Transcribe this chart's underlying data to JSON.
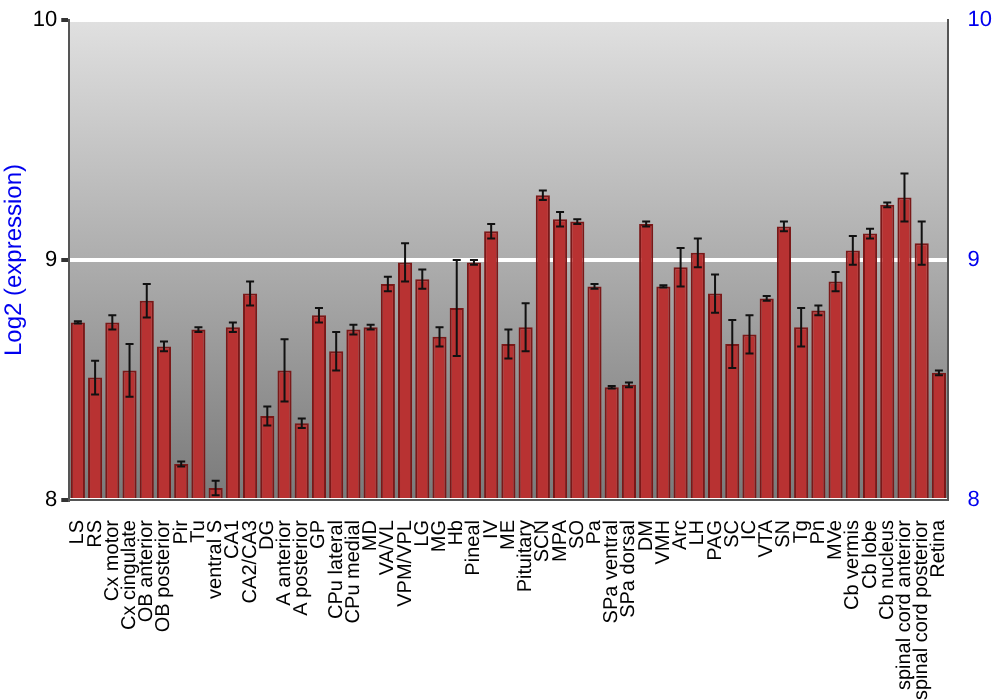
{
  "chart_data": {
    "type": "bar",
    "ylabel": "Log2 (expression)",
    "categories": [
      "LS",
      "RS",
      "Cx motor",
      "Cx cingulate",
      "OB anterior",
      "OB posterior",
      "Pir",
      "Tu",
      "ventral S",
      "CA1",
      "CA2/CA3",
      "DG",
      "A anterior",
      "A posterior",
      "GP",
      "CPu lateral",
      "CPu medial",
      "MD",
      "VA/VL",
      "VPM/VPL",
      "LG",
      "MG",
      "Hb",
      "Pineal",
      "IV",
      "ME",
      "Pituitary",
      "SCN",
      "MPA",
      "SO",
      "Pa",
      "SPa ventral",
      "SPa dorsal",
      "DM",
      "VMH",
      "Arc",
      "LH",
      "PAG",
      "SC",
      "IC",
      "VTA",
      "SN",
      "Tg",
      "Pn",
      "MVe",
      "Cb vermis",
      "Cb lobe",
      "Cb nucleus",
      "spinal cord anterior",
      "spinal cord posterior",
      "Retina"
    ],
    "values": [
      8.74,
      8.51,
      8.74,
      8.54,
      8.83,
      8.64,
      8.15,
      8.71,
      8.05,
      8.72,
      8.86,
      8.35,
      8.54,
      8.32,
      8.77,
      8.62,
      8.71,
      8.72,
      8.9,
      8.99,
      8.92,
      8.68,
      8.8,
      8.99,
      9.12,
      8.65,
      8.72,
      9.27,
      9.17,
      9.16,
      8.89,
      8.47,
      8.48,
      9.15,
      8.89,
      8.97,
      9.03,
      8.86,
      8.65,
      8.69,
      8.84,
      9.14,
      8.72,
      8.79,
      8.91,
      9.04,
      9.11,
      9.23,
      9.26,
      9.07,
      8.53
    ],
    "errors": [
      0.005,
      0.07,
      0.03,
      0.11,
      0.07,
      0.02,
      0.01,
      0.01,
      0.03,
      0.02,
      0.05,
      0.04,
      0.13,
      0.02,
      0.03,
      0.08,
      0.02,
      0.01,
      0.03,
      0.08,
      0.04,
      0.04,
      0.2,
      0.01,
      0.03,
      0.06,
      0.1,
      0.02,
      0.03,
      0.01,
      0.01,
      0.005,
      0.01,
      0.01,
      0.005,
      0.08,
      0.06,
      0.08,
      0.1,
      0.08,
      0.01,
      0.02,
      0.08,
      0.02,
      0.04,
      0.06,
      0.02,
      0.01,
      0.1,
      0.09,
      0.01
    ],
    "color": "#b83232",
    "ylim": [
      8,
      10
    ],
    "yticks": [
      8,
      9,
      10
    ],
    "y2lim": [
      8,
      10
    ],
    "y2ticks": [
      8,
      9,
      10
    ],
    "grid": "y",
    "legend": false
  }
}
